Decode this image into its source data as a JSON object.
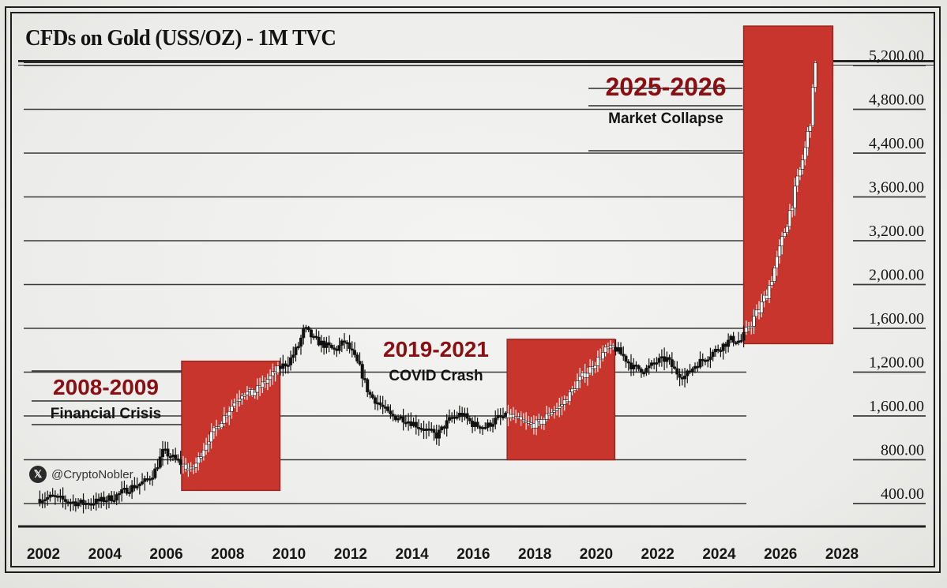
{
  "header": {
    "title": "CFDs on Gold (USS/OZ) - 1M TVC"
  },
  "watermark": {
    "icon": "x-logo-icon",
    "handle": "@CryptoNobler"
  },
  "colors": {
    "highlight_box": "#c8352d",
    "annotation_year": "#8a0f12",
    "text": "#141414",
    "background": "#efefed"
  },
  "chart_data": {
    "type": "candlestick",
    "title": "CFDs on Gold (USS/OZ) - 1M TVC",
    "xlabel": "",
    "ylabel": "",
    "grid": true,
    "x_ticks": [
      "2002",
      "2004",
      "2006",
      "2008",
      "2010",
      "2012",
      "2014",
      "2016",
      "2018",
      "2020",
      "2022",
      "2024",
      "2026",
      "2028"
    ],
    "x_range": [
      2001.6,
      2028.4
    ],
    "y_tick_labels_top_to_bottom": [
      "5,200.00",
      "4,800.00",
      "4,400.00",
      "3,600.00",
      "3,200.00",
      "2,000.00",
      "1,600.00",
      "1,200.00",
      "1,600.00",
      "800.00",
      "400.00"
    ],
    "y_scale_note": "Axis labels are non-monotonic as printed; series values below are expressed in tick-index units (0 = 400.00 line, 10 = 5,200.00 line)",
    "y_index_range": [
      -0.45,
      10.5
    ],
    "series": [
      {
        "name": "Gold monthly (approx. close path, tick-index units)",
        "points": [
          [
            2001.8,
            0.1
          ],
          [
            2002.3,
            0.15
          ],
          [
            2002.8,
            0.05
          ],
          [
            2003.3,
            0.0
          ],
          [
            2003.8,
            0.05
          ],
          [
            2004.3,
            0.15
          ],
          [
            2004.8,
            0.35
          ],
          [
            2005.3,
            0.5
          ],
          [
            2005.6,
            0.7
          ],
          [
            2005.9,
            1.2
          ],
          [
            2006.2,
            1.05
          ],
          [
            2006.5,
            0.9
          ],
          [
            2006.8,
            0.75
          ],
          [
            2007.0,
            0.95
          ],
          [
            2007.3,
            1.4
          ],
          [
            2007.6,
            1.7
          ],
          [
            2007.9,
            2.0
          ],
          [
            2008.2,
            2.3
          ],
          [
            2008.5,
            2.55
          ],
          [
            2008.8,
            2.5
          ],
          [
            2009.1,
            2.7
          ],
          [
            2009.4,
            2.9
          ],
          [
            2009.7,
            3.1
          ],
          [
            2010.0,
            3.25
          ],
          [
            2010.3,
            3.6
          ],
          [
            2010.5,
            4.0
          ],
          [
            2010.8,
            3.75
          ],
          [
            2011.2,
            3.6
          ],
          [
            2011.5,
            3.5
          ],
          [
            2011.8,
            3.7
          ],
          [
            2012.0,
            3.5
          ],
          [
            2012.3,
            3.1
          ],
          [
            2012.6,
            2.5
          ],
          [
            2012.9,
            2.3
          ],
          [
            2013.3,
            2.0
          ],
          [
            2013.7,
            1.95
          ],
          [
            2014.0,
            1.85
          ],
          [
            2014.4,
            1.7
          ],
          [
            2014.8,
            1.55
          ],
          [
            2015.2,
            1.9
          ],
          [
            2015.6,
            2.05
          ],
          [
            2016.0,
            1.8
          ],
          [
            2016.4,
            1.75
          ],
          [
            2016.8,
            1.95
          ],
          [
            2017.2,
            2.0
          ],
          [
            2017.6,
            1.85
          ],
          [
            2017.9,
            1.8
          ],
          [
            2018.2,
            1.85
          ],
          [
            2018.5,
            2.1
          ],
          [
            2018.8,
            2.2
          ],
          [
            2019.1,
            2.45
          ],
          [
            2019.4,
            2.8
          ],
          [
            2019.7,
            3.0
          ],
          [
            2020.0,
            3.25
          ],
          [
            2020.3,
            3.5
          ],
          [
            2020.6,
            3.55
          ],
          [
            2020.9,
            3.35
          ],
          [
            2021.2,
            3.1
          ],
          [
            2021.6,
            3.05
          ],
          [
            2022.0,
            3.25
          ],
          [
            2022.3,
            3.3
          ],
          [
            2022.6,
            3.0
          ],
          [
            2022.9,
            2.9
          ],
          [
            2023.2,
            3.15
          ],
          [
            2023.6,
            3.35
          ],
          [
            2024.0,
            3.55
          ],
          [
            2024.4,
            3.75
          ],
          [
            2024.7,
            3.7
          ],
          [
            2025.0,
            4.1
          ],
          [
            2025.3,
            4.4
          ],
          [
            2025.6,
            4.9
          ],
          [
            2025.9,
            5.6
          ],
          [
            2026.2,
            6.4
          ],
          [
            2026.5,
            7.2
          ],
          [
            2026.8,
            8.1
          ],
          [
            2027.0,
            8.9
          ],
          [
            2027.15,
            10.3
          ]
        ]
      }
    ],
    "annotations": [
      {
        "period": "2008-2009",
        "label": "Financial Crisis",
        "x_range": [
          2006.5,
          2009.7
        ],
        "y_index_range": [
          0.3,
          3.25
        ]
      },
      {
        "period": "2019-2021",
        "label": "COVID Crash",
        "x_range": [
          2017.1,
          2020.6
        ],
        "y_index_range": [
          1.0,
          3.75
        ]
      },
      {
        "period": "2025-2026",
        "label": "Market Collapse",
        "x_range": [
          2024.8,
          2027.7
        ],
        "y_index_range": [
          3.65,
          10.9
        ]
      }
    ]
  }
}
